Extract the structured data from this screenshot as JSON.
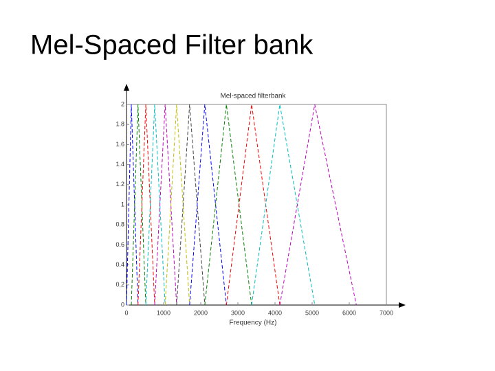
{
  "slide_title": "Mel-Spaced Filter bank",
  "chart_data": {
    "type": "line",
    "title": "Mel-spaced filterbank",
    "xlabel": "Frequency (Hz)",
    "xlim": [
      0,
      7000
    ],
    "xticks": [
      0,
      1000,
      2000,
      3000,
      4000,
      5000,
      6000,
      7000
    ],
    "ylim": [
      0,
      2
    ],
    "yticks": [
      0,
      0.2,
      0.4,
      0.6,
      0.8,
      1,
      1.2,
      1.4,
      1.6,
      1.8,
      2
    ],
    "grid": false,
    "dashed": true,
    "series": [
      {
        "color": "#0000ff",
        "x": [
          0,
          130,
          310
        ],
        "values": [
          0,
          2,
          0
        ]
      },
      {
        "color": "#008000",
        "x": [
          130,
          310,
          520
        ],
        "values": [
          0,
          2,
          0
        ]
      },
      {
        "color": "#ff0000",
        "x": [
          310,
          520,
          760
        ],
        "values": [
          0,
          2,
          0
        ]
      },
      {
        "color": "#00bfbf",
        "x": [
          520,
          760,
          1040
        ],
        "values": [
          0,
          2,
          0
        ]
      },
      {
        "color": "#bf00bf",
        "x": [
          760,
          1040,
          1350
        ],
        "values": [
          0,
          2,
          0
        ]
      },
      {
        "color": "#bfbf00",
        "x": [
          1040,
          1350,
          1700
        ],
        "values": [
          0,
          2,
          0
        ]
      },
      {
        "color": "#404040",
        "x": [
          1350,
          1700,
          2110
        ],
        "values": [
          0,
          2,
          0
        ]
      },
      {
        "color": "#0000ff",
        "x": [
          1700,
          2110,
          2690
        ],
        "values": [
          0,
          2,
          0
        ]
      },
      {
        "color": "#008000",
        "x": [
          2110,
          2690,
          3370
        ],
        "values": [
          0,
          2,
          0
        ]
      },
      {
        "color": "#ff0000",
        "x": [
          2690,
          3370,
          4130
        ],
        "values": [
          0,
          2,
          0
        ]
      },
      {
        "color": "#00bfbf",
        "x": [
          3370,
          4130,
          5070
        ],
        "values": [
          0,
          2,
          0
        ]
      },
      {
        "color": "#bf00bf",
        "x": [
          4130,
          5070,
          6190
        ],
        "values": [
          0,
          2,
          0
        ]
      }
    ]
  }
}
